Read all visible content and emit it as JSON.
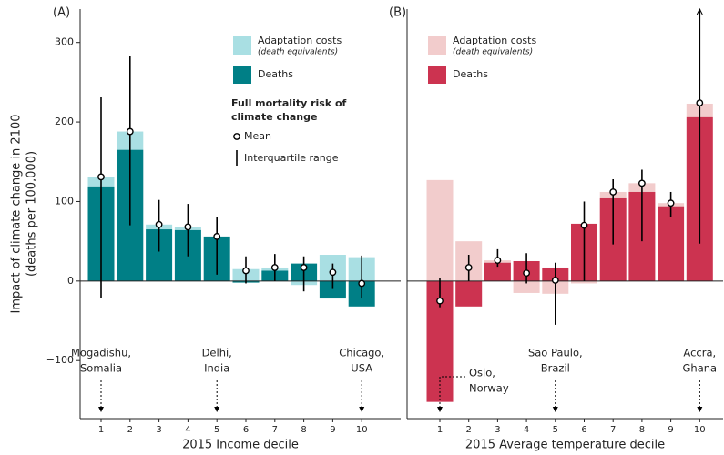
{
  "chart_data": [
    {
      "type": "bar",
      "stacked": true,
      "panel_label": "(A)",
      "ylabel": [
        "Impact of climate change in 2100",
        "(deaths per 100,000)"
      ],
      "xlabel": "2015 Income decile",
      "categories": [
        "1",
        "2",
        "3",
        "4",
        "5",
        "6",
        "7",
        "8",
        "9",
        "10"
      ],
      "series": [
        {
          "name": "Adaptation costs",
          "note": "(death equivalents)",
          "color": "#a9dfe3",
          "values": [
            12,
            23,
            6,
            4,
            0,
            15,
            4,
            -5,
            33,
            30
          ]
        },
        {
          "name": "Deaths",
          "color": "#007f86",
          "values": [
            119,
            165,
            65,
            64,
            56,
            -2,
            13,
            22,
            -22,
            -32
          ]
        }
      ],
      "legend_title": "Full mortality risk of climate change",
      "mean": {
        "name": "Mean",
        "values": [
          131,
          188,
          71,
          68,
          56,
          13,
          17,
          17,
          11,
          -3
        ]
      },
      "iqr": {
        "name": "Interquartile range",
        "low": [
          -22,
          70,
          37,
          31,
          8,
          -3,
          0,
          -13,
          -10,
          -22
        ],
        "high": [
          231,
          283,
          102,
          97,
          80,
          31,
          34,
          31,
          22,
          32
        ]
      },
      "ylim": [
        -173,
        342
      ],
      "yticks": [
        {
          "value": -100,
          "label": "−100"
        },
        0,
        100,
        200,
        300
      ],
      "annotations": [
        {
          "lines": [
            "Mogadishu,",
            "Somalia"
          ],
          "category": "1"
        },
        {
          "lines": [
            "Delhi,",
            "India"
          ],
          "category": "5"
        },
        {
          "lines": [
            "Chicago,",
            "USA"
          ],
          "category": "10"
        }
      ]
    },
    {
      "type": "bar",
      "stacked": true,
      "panel_label": "(B)",
      "xlabel": "2015 Average temperature decile",
      "categories": [
        "1",
        "2",
        "3",
        "4",
        "5",
        "6",
        "7",
        "8",
        "9",
        "10"
      ],
      "series": [
        {
          "name": "Adaptation costs",
          "note": "(death equivalents)",
          "color": "#f2cccc",
          "values": [
            127,
            50,
            3,
            -15,
            -16,
            -3,
            8,
            11,
            4,
            17
          ]
        },
        {
          "name": "Deaths",
          "color": "#cc3350",
          "values": [
            -152,
            -32,
            23,
            25,
            17,
            72,
            104,
            112,
            94,
            206
          ]
        }
      ],
      "mean": {
        "values": [
          -25,
          17,
          26,
          10,
          1,
          70,
          112,
          123,
          98,
          224
        ]
      },
      "iqr": {
        "low": [
          -33,
          0,
          18,
          -3,
          -55,
          0,
          46,
          50,
          80,
          47
        ],
        "high": [
          4,
          33,
          40,
          35,
          23,
          100,
          128,
          140,
          112,
          342
        ]
      },
      "ylim": [
        -173,
        342
      ],
      "annotations": [
        {
          "lines": [
            "Oslo,",
            "Norway"
          ],
          "category": "1"
        },
        {
          "lines": [
            "Sao Paulo,",
            "Brazil"
          ],
          "category": "5"
        },
        {
          "lines": [
            "Accra,",
            "Ghana"
          ],
          "category": "10"
        }
      ]
    }
  ]
}
